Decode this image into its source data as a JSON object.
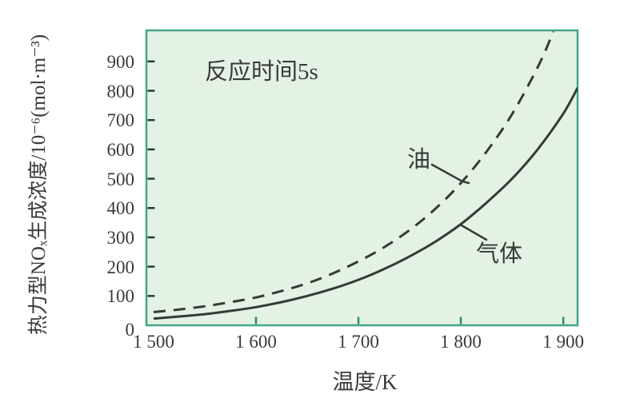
{
  "chart_data": {
    "type": "line",
    "title": "",
    "annotation": "反应时间5s",
    "xlabel": "温度/K",
    "ylabel": "热力型NOₓ生成浓度/10⁻⁶(mol·m⁻³)",
    "xlim": [
      1493,
      1914
    ],
    "ylim": [
      0,
      1006
    ],
    "grid": false,
    "legend_position": "inline-curve-labels",
    "x_ticks": [
      {
        "value": 1500,
        "label": "1 500",
        "tick": false
      },
      {
        "value": 1600,
        "label": "1 600",
        "tick": true
      },
      {
        "value": 1700,
        "label": "1 700",
        "tick": true
      },
      {
        "value": 1800,
        "label": "1 800",
        "tick": true
      },
      {
        "value": 1900,
        "label": "1 900",
        "tick": true
      }
    ],
    "y_ticks": [
      {
        "value": 0,
        "label": "0",
        "tick": false
      },
      {
        "value": 100,
        "label": "100",
        "tick": true
      },
      {
        "value": 200,
        "label": "200",
        "tick": true
      },
      {
        "value": 300,
        "label": "300",
        "tick": true
      },
      {
        "value": 400,
        "label": "400",
        "tick": true
      },
      {
        "value": 500,
        "label": "500",
        "tick": true
      },
      {
        "value": 600,
        "label": "600",
        "tick": true
      },
      {
        "value": 700,
        "label": "700",
        "tick": true
      },
      {
        "value": 800,
        "label": "800",
        "tick": true
      },
      {
        "value": 900,
        "label": "900",
        "tick": true
      }
    ],
    "series": [
      {
        "name": "油",
        "line_style": "dashed",
        "points": [
          [
            1500,
            45
          ],
          [
            1525,
            54
          ],
          [
            1550,
            65
          ],
          [
            1575,
            79
          ],
          [
            1600,
            95
          ],
          [
            1625,
            117
          ],
          [
            1650,
            143
          ],
          [
            1675,
            177
          ],
          [
            1700,
            218
          ],
          [
            1725,
            266
          ],
          [
            1750,
            325
          ],
          [
            1775,
            397
          ],
          [
            1800,
            485
          ],
          [
            1825,
            592
          ],
          [
            1850,
            720
          ],
          [
            1875,
            880
          ],
          [
            1890,
            1000
          ],
          [
            1905,
            1140
          ]
        ]
      },
      {
        "name": "气体",
        "line_style": "solid",
        "points": [
          [
            1500,
            23
          ],
          [
            1525,
            30
          ],
          [
            1550,
            38
          ],
          [
            1575,
            49
          ],
          [
            1600,
            62
          ],
          [
            1625,
            79
          ],
          [
            1650,
            100
          ],
          [
            1675,
            125
          ],
          [
            1700,
            155
          ],
          [
            1725,
            192
          ],
          [
            1750,
            235
          ],
          [
            1775,
            285
          ],
          [
            1800,
            345
          ],
          [
            1825,
            418
          ],
          [
            1850,
            500
          ],
          [
            1875,
            600
          ],
          [
            1900,
            722
          ],
          [
            1914,
            810
          ]
        ]
      }
    ],
    "colors": {
      "plot_background": "#e4f2e6",
      "plot_border": "#43a685",
      "curve": "#333c35",
      "x_tick": "#2e8a68",
      "y_tick": "#263b2f",
      "text": "#3a3a3a"
    }
  }
}
